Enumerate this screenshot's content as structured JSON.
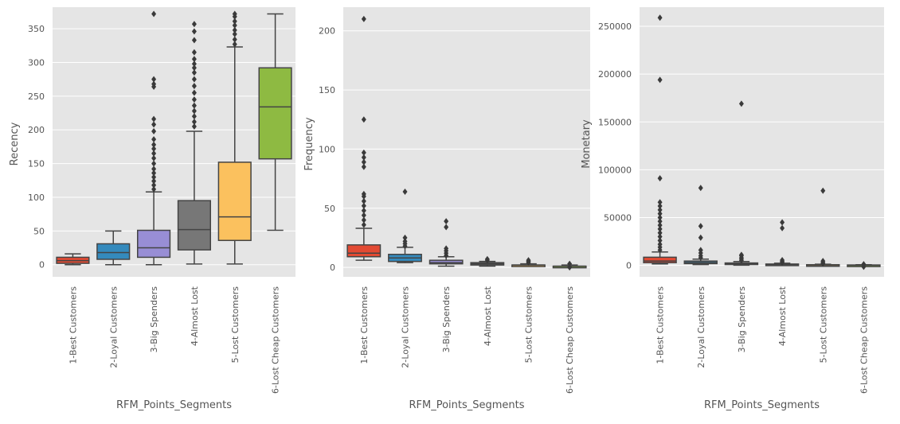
{
  "chart_data": [
    {
      "type": "box",
      "xlabel": "RFM_Points_Segments",
      "ylabel": "Recency",
      "ylim": [
        -18,
        382
      ],
      "yticks": [
        0,
        50,
        100,
        150,
        200,
        250,
        300,
        350
      ],
      "grid": true,
      "colors": [
        "#e24a33",
        "#348abd",
        "#988ed5",
        "#777777",
        "#fbc15e",
        "#8eba42"
      ],
      "categories": [
        "1-Best Customers",
        "2-Loyal Customers",
        "3-Big Spenders",
        "4-Almost Lost",
        "5-Lost Customers",
        "6-Lost Cheap Customers"
      ],
      "boxes": [
        {
          "whislo": 0,
          "q1": 2,
          "med": 6,
          "q3": 11,
          "whishi": 16,
          "fliers": []
        },
        {
          "whislo": 0,
          "q1": 8,
          "med": 18,
          "q3": 31,
          "whishi": 50,
          "fliers": []
        },
        {
          "whislo": 0,
          "q1": 11,
          "med": 25,
          "q3": 51,
          "whishi": 108,
          "fliers": [
            112,
            118,
            124,
            130,
            136,
            142,
            150,
            158,
            165,
            172,
            178,
            186,
            198,
            208,
            216,
            264,
            268,
            275,
            372
          ]
        },
        {
          "whislo": 1,
          "q1": 22,
          "med": 52,
          "q3": 95,
          "whishi": 198,
          "fliers": [
            205,
            212,
            220,
            228,
            236,
            245,
            255,
            265,
            275,
            285,
            292,
            298,
            305,
            315,
            333,
            346,
            357
          ]
        },
        {
          "whislo": 1,
          "q1": 36,
          "med": 71,
          "q3": 152,
          "whishi": 323,
          "fliers": [
            327,
            334,
            342,
            348,
            355,
            361,
            368,
            372
          ]
        },
        {
          "whislo": 51,
          "q1": 157,
          "med": 234,
          "q3": 292,
          "whishi": 372,
          "fliers": []
        }
      ]
    },
    {
      "type": "box",
      "xlabel": "RFM_Points_Segments",
      "ylabel": "Frequency",
      "ylim": [
        -8,
        220
      ],
      "yticks": [
        0,
        50,
        100,
        150,
        200
      ],
      "grid": true,
      "colors": [
        "#e24a33",
        "#348abd",
        "#988ed5",
        "#777777",
        "#fbc15e",
        "#8eba42"
      ],
      "categories": [
        "1-Best Customers",
        "2-Loyal Customers",
        "3-Big Spenders",
        "4-Almost Lost",
        "5-Lost Customers",
        "6-Lost Cheap Customers"
      ],
      "boxes": [
        {
          "whislo": 6,
          "q1": 9,
          "med": 12,
          "q3": 19,
          "whishi": 33,
          "fliers": [
            36,
            40,
            44,
            48,
            52,
            56,
            60,
            62,
            85,
            89,
            93,
            97,
            125,
            210
          ]
        },
        {
          "whislo": 4,
          "q1": 5,
          "med": 8,
          "q3": 11,
          "whishi": 17,
          "fliers": [
            18,
            20,
            22,
            25,
            64
          ]
        },
        {
          "whislo": 1,
          "q1": 3,
          "med": 4,
          "q3": 6,
          "whishi": 9,
          "fliers": [
            10,
            12,
            14,
            16,
            34,
            39
          ]
        },
        {
          "whislo": 1,
          "q1": 2,
          "med": 3,
          "q3": 4,
          "whishi": 5,
          "fliers": [
            6,
            7
          ]
        },
        {
          "whislo": 1,
          "q1": 1,
          "med": 2,
          "q3": 2,
          "whishi": 3,
          "fliers": [
            4,
            5,
            6
          ]
        },
        {
          "whislo": 0,
          "q1": 1,
          "med": 1,
          "q3": 1,
          "whishi": 2,
          "fliers": [
            0,
            3
          ]
        }
      ]
    },
    {
      "type": "box",
      "xlabel": "RFM_Points_Segments",
      "ylabel": "Monetary",
      "ylim": [
        -12000,
        270000
      ],
      "yticks": [
        0,
        50000,
        100000,
        150000,
        200000,
        250000
      ],
      "grid": true,
      "colors": [
        "#e24a33",
        "#348abd",
        "#988ed5",
        "#777777",
        "#fbc15e",
        "#8eba42"
      ],
      "categories": [
        "1-Best Customers",
        "2-Loyal Customers",
        "3-Big Spenders",
        "4-Almost Lost",
        "5-Lost Customers",
        "6-Lost Cheap Customers"
      ],
      "boxes": [
        {
          "whislo": 1500,
          "q1": 2800,
          "med": 4500,
          "q3": 8500,
          "whishi": 14000,
          "fliers": [
            16000,
            19000,
            22000,
            26000,
            30000,
            34000,
            38000,
            42000,
            46000,
            50000,
            54000,
            58000,
            62000,
            66000,
            91000,
            194000,
            259000
          ]
        },
        {
          "whislo": 800,
          "q1": 1800,
          "med": 3000,
          "q3": 4500,
          "whishi": 6500,
          "fliers": [
            8000,
            10000,
            13000,
            16000,
            29000,
            41000,
            81000
          ]
        },
        {
          "whislo": 200,
          "q1": 900,
          "med": 1500,
          "q3": 2500,
          "whishi": 4000,
          "fliers": [
            5000,
            6500,
            8000,
            10000,
            11000,
            169000
          ]
        },
        {
          "whislo": 100,
          "q1": 500,
          "med": 900,
          "q3": 1400,
          "whishi": 2200,
          "fliers": [
            3000,
            4000,
            5500,
            39000,
            45000
          ]
        },
        {
          "whislo": 0,
          "q1": 200,
          "med": 400,
          "q3": 700,
          "whishi": 1200,
          "fliers": [
            1800,
            3000,
            4500,
            78000
          ]
        },
        {
          "whislo": 0,
          "q1": 100,
          "med": 200,
          "q3": 400,
          "whishi": 700,
          "fliers": [
            -1500,
            1200
          ]
        }
      ]
    }
  ]
}
